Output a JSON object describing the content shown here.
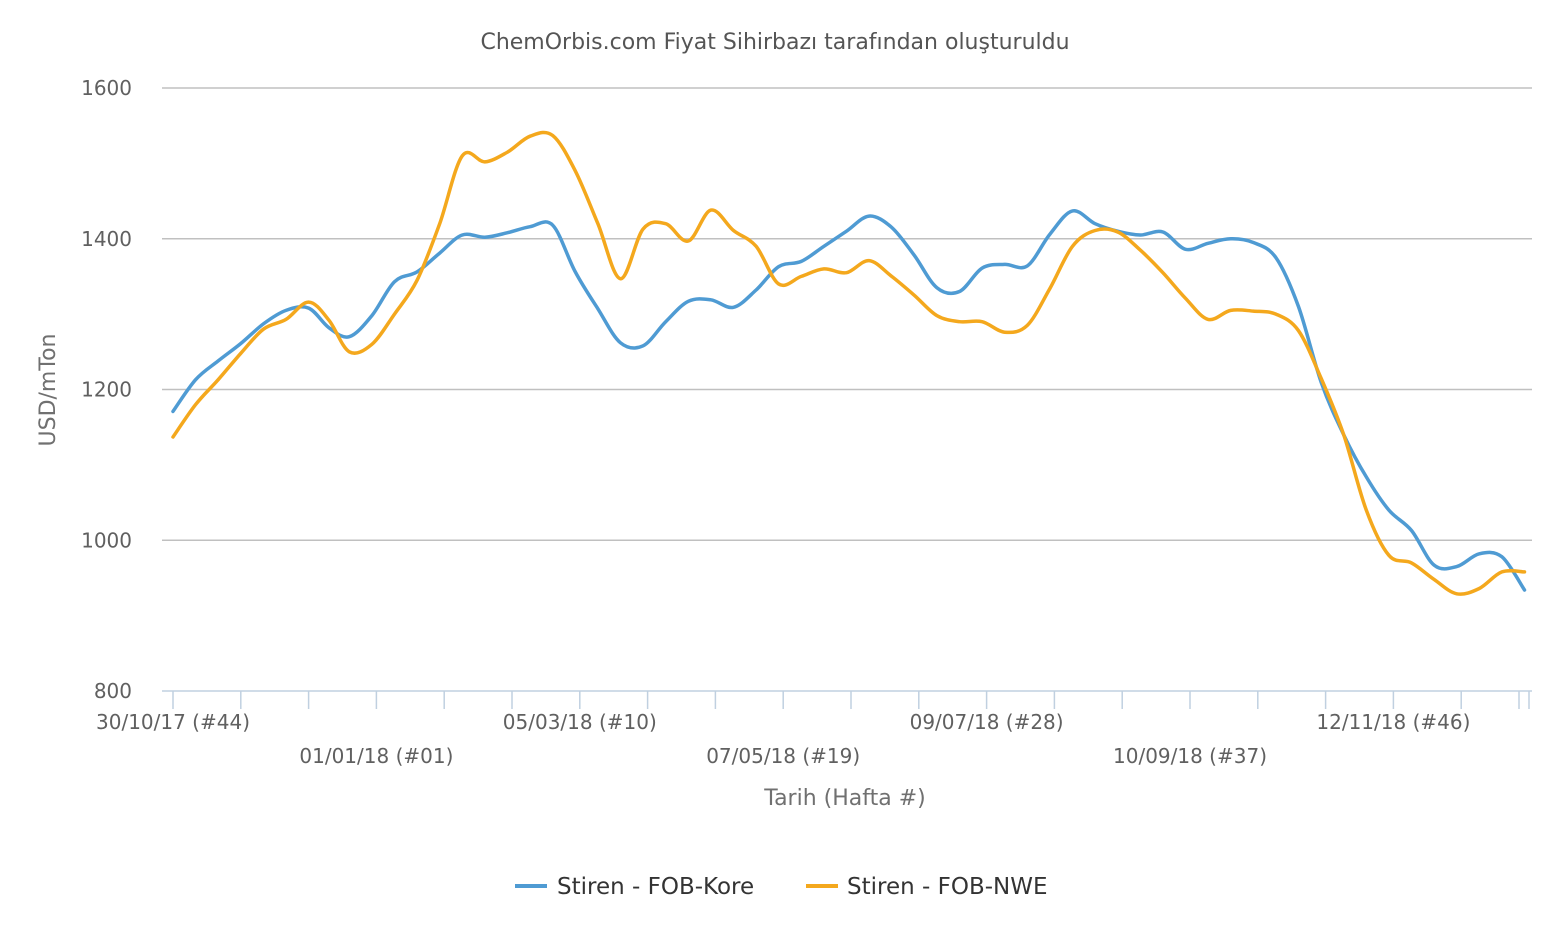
{
  "chart_data": {
    "type": "line",
    "title": "ChemOrbis.com Fiyat Sihirbazı tarafından oluşturuldu",
    "xlabel": "Tarih (Hafta #)",
    "ylabel": "USD/mTon",
    "ylim": [
      800,
      1600
    ],
    "yticks": [
      800,
      1000,
      1200,
      1400,
      1600
    ],
    "grid": true,
    "legend_position": "bottom-center",
    "x_unit": "week",
    "x_labels": [
      {
        "week": 0,
        "label": "30/10/17 (#44)",
        "row": 1
      },
      {
        "week": 9,
        "label": "01/01/18 (#01)",
        "row": 2
      },
      {
        "week": 18,
        "label": "05/03/18 (#10)",
        "row": 1
      },
      {
        "week": 27,
        "label": "07/05/18 (#19)",
        "row": 2
      },
      {
        "week": 36,
        "label": "09/07/18 (#28)",
        "row": 1
      },
      {
        "week": 45,
        "label": "10/09/18 (#37)",
        "row": 2
      },
      {
        "week": 54,
        "label": "12/11/18 (#46)",
        "row": 1
      }
    ],
    "x_week_count": 60,
    "series": [
      {
        "name": "Stiren - FOB-Kore",
        "color": "#4f9bd3",
        "points": [
          [
            0,
            1171
          ],
          [
            1,
            1213
          ],
          [
            2,
            1238
          ],
          [
            3,
            1261
          ],
          [
            4,
            1287
          ],
          [
            5,
            1305
          ],
          [
            6,
            1308
          ],
          [
            6.9,
            1282
          ],
          [
            7.8,
            1270
          ],
          [
            8.8,
            1298
          ],
          [
            9.8,
            1343
          ],
          [
            10.8,
            1356
          ],
          [
            11.8,
            1381
          ],
          [
            12.8,
            1405
          ],
          [
            13.8,
            1402
          ],
          [
            14.8,
            1408
          ],
          [
            15.8,
            1416
          ],
          [
            16.8,
            1418
          ],
          [
            17.8,
            1356
          ],
          [
            18.8,
            1307
          ],
          [
            19.8,
            1262
          ],
          [
            20.8,
            1258
          ],
          [
            21.8,
            1290
          ],
          [
            22.8,
            1317
          ],
          [
            23.8,
            1319
          ],
          [
            24.8,
            1309
          ],
          [
            25.8,
            1332
          ],
          [
            26.8,
            1363
          ],
          [
            27.8,
            1370
          ],
          [
            28.8,
            1390
          ],
          [
            29.8,
            1410
          ],
          [
            30.8,
            1430
          ],
          [
            31.8,
            1415
          ],
          [
            32.8,
            1378
          ],
          [
            33.8,
            1335
          ],
          [
            34.8,
            1330
          ],
          [
            35.8,
            1361
          ],
          [
            36.8,
            1366
          ],
          [
            37.8,
            1364
          ],
          [
            38.8,
            1406
          ],
          [
            39.8,
            1437
          ],
          [
            40.8,
            1420
          ],
          [
            41.8,
            1410
          ],
          [
            42.8,
            1405
          ],
          [
            43.8,
            1409
          ],
          [
            44.8,
            1386
          ],
          [
            45.8,
            1394
          ],
          [
            46.8,
            1400
          ],
          [
            47.8,
            1395
          ],
          [
            48.8,
            1375
          ],
          [
            49.8,
            1310
          ],
          [
            50.8,
            1210
          ],
          [
            51.8,
            1140
          ],
          [
            52.8,
            1084
          ],
          [
            53.8,
            1040
          ],
          [
            54.8,
            1013
          ],
          [
            55.8,
            967
          ],
          [
            56.8,
            965
          ],
          [
            57.8,
            982
          ],
          [
            58.8,
            978
          ],
          [
            59.8,
            934
          ]
        ]
      },
      {
        "name": "Stiren - FOB-NWE",
        "color": "#f4a81d",
        "points": [
          [
            0,
            1137
          ],
          [
            1,
            1180
          ],
          [
            2,
            1213
          ],
          [
            3,
            1248
          ],
          [
            4,
            1280
          ],
          [
            5,
            1293
          ],
          [
            6,
            1316
          ],
          [
            6.9,
            1292
          ],
          [
            7.8,
            1250
          ],
          [
            8.8,
            1260
          ],
          [
            9.8,
            1300
          ],
          [
            10.8,
            1345
          ],
          [
            11.8,
            1420
          ],
          [
            12.8,
            1510
          ],
          [
            13.8,
            1502
          ],
          [
            14.8,
            1515
          ],
          [
            15.8,
            1536
          ],
          [
            16.8,
            1537
          ],
          [
            17.8,
            1490
          ],
          [
            18.8,
            1420
          ],
          [
            19.8,
            1347
          ],
          [
            20.8,
            1413
          ],
          [
            21.8,
            1420
          ],
          [
            22.8,
            1397
          ],
          [
            23.8,
            1438
          ],
          [
            24.8,
            1411
          ],
          [
            25.8,
            1390
          ],
          [
            26.8,
            1340
          ],
          [
            27.8,
            1350
          ],
          [
            28.8,
            1360
          ],
          [
            29.8,
            1355
          ],
          [
            30.8,
            1371
          ],
          [
            31.8,
            1350
          ],
          [
            32.8,
            1325
          ],
          [
            33.8,
            1298
          ],
          [
            34.8,
            1290
          ],
          [
            35.8,
            1290
          ],
          [
            36.8,
            1276
          ],
          [
            37.8,
            1285
          ],
          [
            38.8,
            1334
          ],
          [
            39.8,
            1390
          ],
          [
            40.8,
            1411
          ],
          [
            41.8,
            1409
          ],
          [
            42.8,
            1385
          ],
          [
            43.8,
            1355
          ],
          [
            44.8,
            1321
          ],
          [
            45.8,
            1293
          ],
          [
            46.8,
            1305
          ],
          [
            47.8,
            1304
          ],
          [
            48.8,
            1300
          ],
          [
            49.8,
            1278
          ],
          [
            50.8,
            1215
          ],
          [
            51.8,
            1140
          ],
          [
            52.8,
            1040
          ],
          [
            53.8,
            980
          ],
          [
            54.8,
            970
          ],
          [
            55.8,
            948
          ],
          [
            56.8,
            929
          ],
          [
            57.8,
            936
          ],
          [
            58.8,
            958
          ],
          [
            59.8,
            958
          ]
        ]
      }
    ]
  }
}
